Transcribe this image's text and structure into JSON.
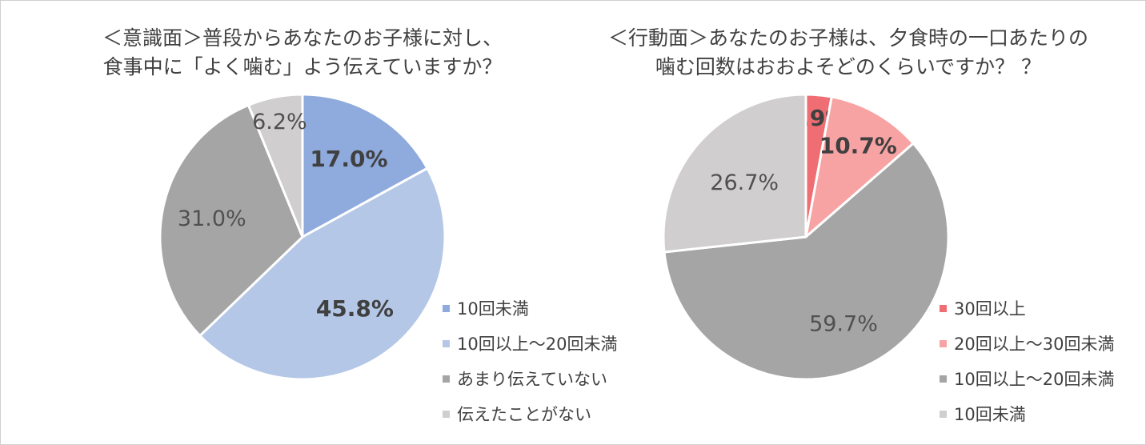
{
  "chart_data": [
    {
      "type": "pie",
      "title_lines": [
        "＜意識面＞普段からあなたのお子様に対し、",
        "食事中に「よく噛む」よう伝えていますか？"
      ],
      "series": [
        {
          "name": "10回未満",
          "value": 17.0,
          "label": "17.0%",
          "color": "#8faadc",
          "bold": true
        },
        {
          "name": "10回以上～20回未満",
          "value": 45.8,
          "label": "45.8%",
          "color": "#b4c7e7",
          "bold": true
        },
        {
          "name": "あまり伝えていない",
          "value": 31.0,
          "label": "31.0%",
          "color": "#a5a5a5",
          "bold": false
        },
        {
          "name": "伝えたことがない",
          "value": 6.2,
          "label": "6.2%",
          "color": "#d0cece",
          "bold": false
        }
      ],
      "legend_position": "right"
    },
    {
      "type": "pie",
      "title_lines": [
        "＜行動面＞あなたのお子様は、夕食時の一口あたりの",
        "噛む回数はおおよそどのくらいですか？ ？"
      ],
      "series": [
        {
          "name": "30回以上",
          "value": 2.9,
          "label": "2.9%",
          "color": "#ee6e73",
          "bold": true
        },
        {
          "name": "20回以上～30回未満",
          "value": 10.7,
          "label": "10.7%",
          "color": "#f8a3a3",
          "bold": true
        },
        {
          "name": "10回以上～20回未満",
          "value": 59.7,
          "label": "59.7%",
          "color": "#a5a5a5",
          "bold": false
        },
        {
          "name": "10回未満",
          "value": 26.7,
          "label": "26.7%",
          "color": "#d0cece",
          "bold": false
        }
      ],
      "legend_position": "right"
    }
  ]
}
